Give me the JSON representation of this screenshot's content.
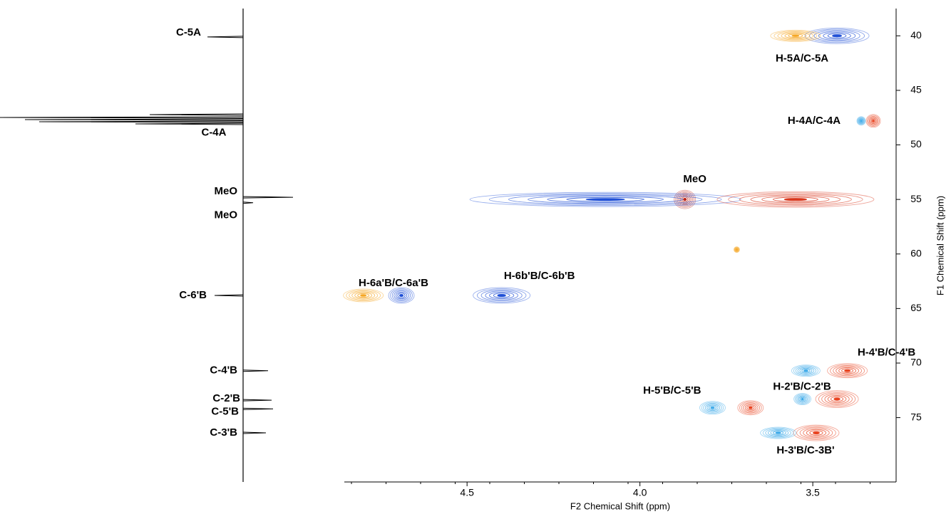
{
  "chart_data": {
    "type": "hsqc",
    "x_label": "F2 Chemical Shift (ppm)",
    "y_label": "F1 Chemical Shift (ppm)",
    "xlim": [
      4.855,
      3.259
    ],
    "ylim": [
      37.5,
      80.9
    ],
    "xticks": [
      4.5,
      {
        "value": 4,
        "label": "4.0"
      },
      3.5
    ],
    "yticks": [
      40,
      45,
      50,
      55,
      60,
      65,
      70,
      75
    ],
    "peaks": [
      {
        "label": "H-5A/C-5A",
        "x": 3.43,
        "y": 40.0,
        "color": "#1f4fd6"
      },
      {
        "x": 3.55,
        "y": 40.0,
        "color": "#f5a623"
      },
      {
        "label": "H-4A/C-4A",
        "x": 3.325,
        "y": 47.8,
        "color": "#e8401c"
      },
      {
        "x": 3.36,
        "y": 47.8,
        "color": "#39a8e8"
      },
      {
        "label": "MeO",
        "x": 3.87,
        "y": 55.0,
        "color": "#c0281a"
      },
      {
        "x": 4.1,
        "y": 55.0,
        "color": "#1f4fd6"
      },
      {
        "x": 3.55,
        "y": 55.0,
        "color": "#d9381e"
      },
      {
        "x": 3.72,
        "y": 59.6,
        "color": "#f5a623"
      },
      {
        "label": "H-6a'B/C-6a'B",
        "x": 4.69,
        "y": 63.8,
        "color": "#1f4fd6"
      },
      {
        "x": 4.8,
        "y": 63.8,
        "color": "#f5a623"
      },
      {
        "label": "H-6b'B/C-6b'B",
        "x": 4.4,
        "y": 63.8,
        "color": "#1f4fd6"
      },
      {
        "label": "H-4'B/C-4'B",
        "x": 3.4,
        "y": 70.7,
        "color": "#e8401c"
      },
      {
        "x": 3.52,
        "y": 70.7,
        "color": "#39a8e8"
      },
      {
        "label": "H-2'B/C-2'B",
        "x": 3.43,
        "y": 73.3,
        "color": "#e8401c"
      },
      {
        "x": 3.53,
        "y": 73.3,
        "color": "#39a8e8"
      },
      {
        "label": "H-5'B/C-5'B",
        "x": 3.68,
        "y": 74.1,
        "color": "#e8401c"
      },
      {
        "x": 3.79,
        "y": 74.1,
        "color": "#39a8e8"
      },
      {
        "label": "H-3'B/C-3B'",
        "x": 3.49,
        "y": 76.4,
        "color": "#e8401c"
      },
      {
        "x": 3.6,
        "y": 76.4,
        "color": "#39a8e8"
      }
    ],
    "projection_peaks": [
      {
        "label": "C-5A",
        "y": 40.1
      },
      {
        "label": "C-4A",
        "y": 48.3
      },
      {
        "label": "MeO",
        "y": 54.8
      },
      {
        "label": "MeO",
        "y": 55.3
      },
      {
        "label": "C-6'B",
        "y": 63.8
      },
      {
        "label": "C-4'B",
        "y": 70.7
      },
      {
        "label": "C-2'B",
        "y": 73.4
      },
      {
        "label": "C-5'B",
        "y": 74.2
      },
      {
        "label": "C-3'B",
        "y": 76.4
      }
    ]
  }
}
